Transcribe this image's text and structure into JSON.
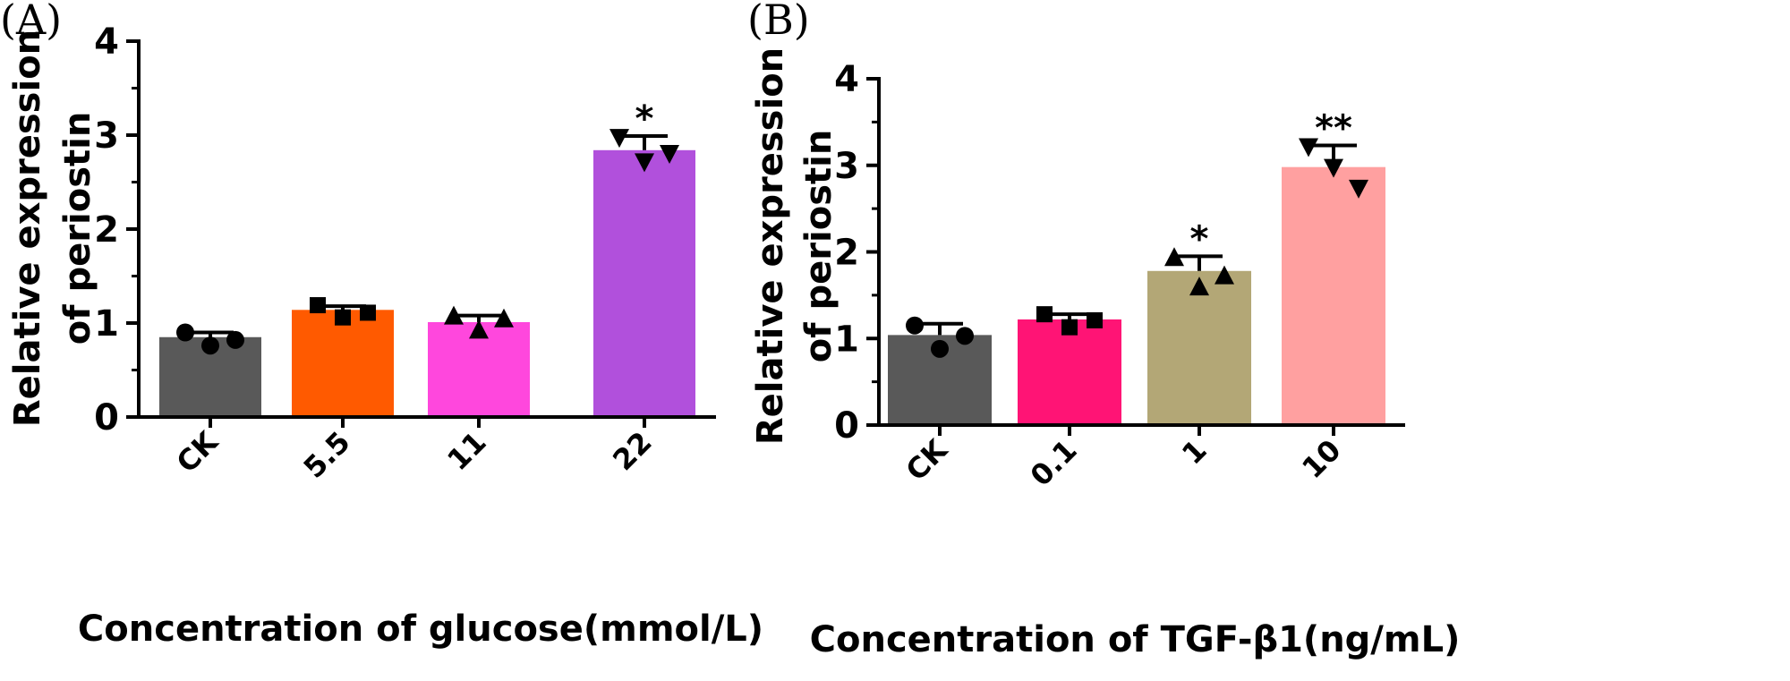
{
  "chart_data": [
    {
      "type": "bar",
      "panel_label": "(A)",
      "xlabel": "Concentration of glucose(mmol/L)",
      "ylabel_lines": [
        "Relative expression",
        "of  periostin"
      ],
      "ylim": [
        0,
        4
      ],
      "yticks": [
        "0",
        "1",
        "2",
        "3",
        "4"
      ],
      "categories": [
        "CK",
        "5.5",
        "11",
        "22"
      ],
      "values": [
        0.85,
        1.14,
        1.01,
        2.84
      ],
      "errors": [
        0.05,
        0.04,
        0.07,
        0.15
      ],
      "colors": [
        "#595959",
        "#ff5a00",
        "#ff47dd",
        "#b150dc"
      ],
      "markers": [
        "circle",
        "square",
        "triangle",
        "triangle-down"
      ],
      "points": [
        [
          0.9,
          0.76,
          0.82
        ],
        [
          1.19,
          1.06,
          1.11
        ],
        [
          1.07,
          0.92,
          1.04
        ],
        [
          2.98,
          2.72,
          2.81
        ]
      ],
      "significance": [
        "",
        "",
        "",
        "*"
      ]
    },
    {
      "type": "bar",
      "panel_label": "(B)",
      "xlabel": "Concentration of TGF-β1(ng/mL)",
      "ylabel_lines": [
        "Relative expression",
        "of  periostin"
      ],
      "ylim": [
        0,
        4
      ],
      "yticks": [
        "0",
        "1",
        "2",
        "3",
        "4"
      ],
      "categories": [
        "CK",
        "0.1",
        "1",
        "10"
      ],
      "values": [
        1.04,
        1.22,
        1.78,
        2.98
      ],
      "errors": [
        0.13,
        0.06,
        0.17,
        0.25
      ],
      "colors": [
        "#595959",
        "#ff1475",
        "#b3a776",
        "#ffa0a0"
      ],
      "markers": [
        "circle",
        "square",
        "triangle",
        "triangle-down"
      ],
      "points": [
        [
          1.15,
          0.88,
          1.03
        ],
        [
          1.28,
          1.13,
          1.21
        ],
        [
          1.93,
          1.59,
          1.72
        ],
        [
          3.22,
          2.98,
          2.74
        ]
      ],
      "significance": [
        "",
        "",
        "*",
        "**"
      ]
    }
  ]
}
